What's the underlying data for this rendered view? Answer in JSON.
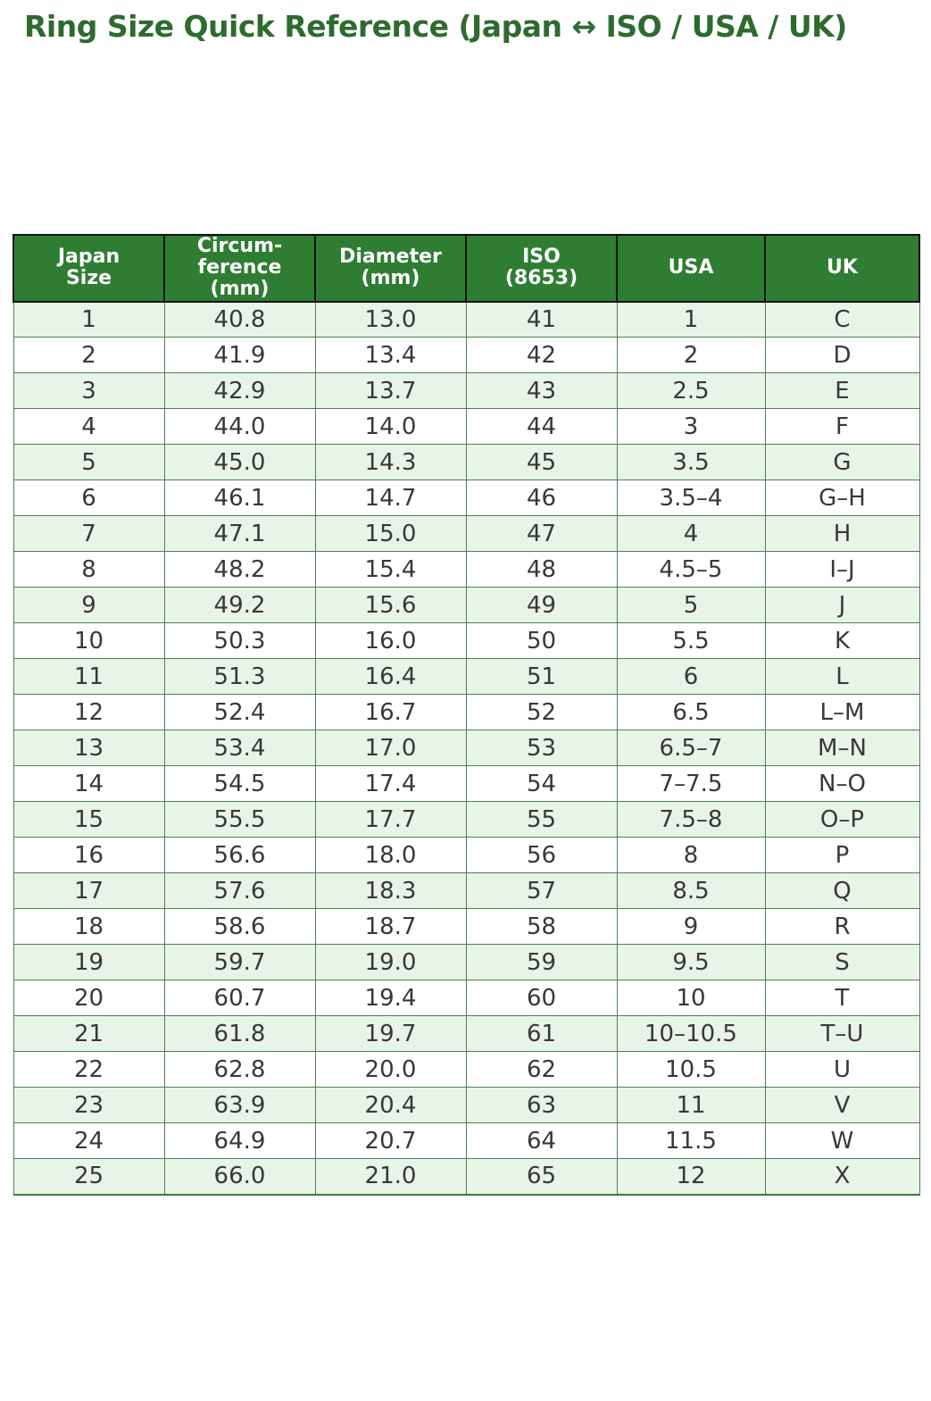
{
  "page": {
    "title": "Ring Size Quick Reference (Japan ↔ ISO / USA / UK)"
  },
  "colors": {
    "title_text": "#2d6b2e",
    "header_bg": "#2e7d32",
    "header_text": "#ffffff",
    "header_border": "#121212",
    "cell_border": "#4e8052",
    "row_stripe_bg": "#e8f4e8",
    "row_plain_bg": "#ffffff",
    "cell_text": "#383838"
  },
  "table": {
    "columns": [
      {
        "id": "japan_size",
        "label": "Japan\nSize"
      },
      {
        "id": "circumference",
        "label": "Circum-\nference\n(mm)"
      },
      {
        "id": "diameter",
        "label": "Diameter\n(mm)"
      },
      {
        "id": "iso",
        "label": "ISO\n(8653)"
      },
      {
        "id": "usa",
        "label": "USA"
      },
      {
        "id": "uk",
        "label": "UK"
      }
    ],
    "rows": [
      [
        "1",
        "40.8",
        "13.0",
        "41",
        "1",
        "C"
      ],
      [
        "2",
        "41.9",
        "13.4",
        "42",
        "2",
        "D"
      ],
      [
        "3",
        "42.9",
        "13.7",
        "43",
        "2.5",
        "E"
      ],
      [
        "4",
        "44.0",
        "14.0",
        "44",
        "3",
        "F"
      ],
      [
        "5",
        "45.0",
        "14.3",
        "45",
        "3.5",
        "G"
      ],
      [
        "6",
        "46.1",
        "14.7",
        "46",
        "3.5–4",
        "G–H"
      ],
      [
        "7",
        "47.1",
        "15.0",
        "47",
        "4",
        "H"
      ],
      [
        "8",
        "48.2",
        "15.4",
        "48",
        "4.5–5",
        "I–J"
      ],
      [
        "9",
        "49.2",
        "15.6",
        "49",
        "5",
        "J"
      ],
      [
        "10",
        "50.3",
        "16.0",
        "50",
        "5.5",
        "K"
      ],
      [
        "11",
        "51.3",
        "16.4",
        "51",
        "6",
        "L"
      ],
      [
        "12",
        "52.4",
        "16.7",
        "52",
        "6.5",
        "L–M"
      ],
      [
        "13",
        "53.4",
        "17.0",
        "53",
        "6.5–7",
        "M–N"
      ],
      [
        "14",
        "54.5",
        "17.4",
        "54",
        "7–7.5",
        "N–O"
      ],
      [
        "15",
        "55.5",
        "17.7",
        "55",
        "7.5–8",
        "O–P"
      ],
      [
        "16",
        "56.6",
        "18.0",
        "56",
        "8",
        "P"
      ],
      [
        "17",
        "57.6",
        "18.3",
        "57",
        "8.5",
        "Q"
      ],
      [
        "18",
        "58.6",
        "18.7",
        "58",
        "9",
        "R"
      ],
      [
        "19",
        "59.7",
        "19.0",
        "59",
        "9.5",
        "S"
      ],
      [
        "20",
        "60.7",
        "19.4",
        "60",
        "10",
        "T"
      ],
      [
        "21",
        "61.8",
        "19.7",
        "61",
        "10–10.5",
        "T–U"
      ],
      [
        "22",
        "62.8",
        "20.0",
        "62",
        "10.5",
        "U"
      ],
      [
        "23",
        "63.9",
        "20.4",
        "63",
        "11",
        "V"
      ],
      [
        "24",
        "64.9",
        "20.7",
        "64",
        "11.5",
        "W"
      ],
      [
        "25",
        "66.0",
        "21.0",
        "65",
        "12",
        "X"
      ]
    ]
  }
}
